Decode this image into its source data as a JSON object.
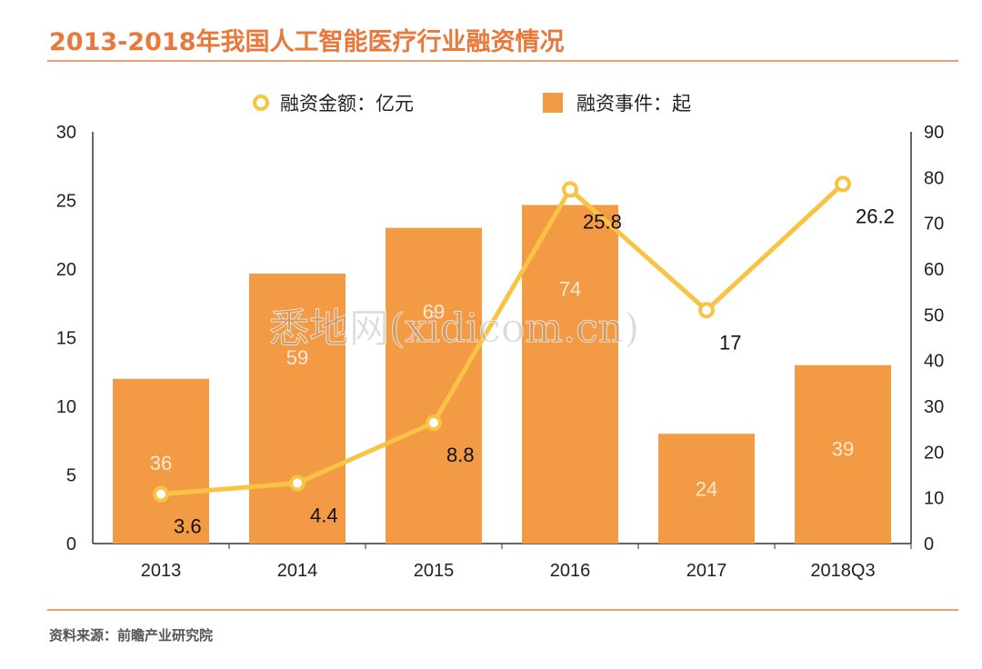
{
  "title": "2013-2018年我国人工智能医疗行业融资情况",
  "source": "资料来源：前瞻产业研究院",
  "watermark": "悉地网(xidicom.cn)",
  "colors": {
    "bar": "#F39A45",
    "line": "#F9C443",
    "title": "#E8793A",
    "rule": "#E8A070"
  },
  "chart_data": {
    "type": "bar",
    "categories": [
      "2013",
      "2014",
      "2015",
      "2016",
      "2017",
      "2018Q3"
    ],
    "series": [
      {
        "name": "融资事件：起",
        "type": "bar",
        "axis": "right",
        "values": [
          36,
          59,
          69,
          74,
          24,
          39
        ]
      },
      {
        "name": "融资金额：亿元",
        "type": "line",
        "axis": "left",
        "values": [
          3.6,
          4.4,
          8.8,
          25.8,
          17,
          26.2
        ]
      }
    ],
    "y_left": {
      "ylim": [
        0,
        30
      ],
      "ticks": [
        "0",
        "5",
        "10",
        "15",
        "20",
        "25",
        "30"
      ]
    },
    "y_right": {
      "ylim": [
        0,
        90
      ],
      "ticks": [
        "0",
        "10",
        "20",
        "30",
        "40",
        "50",
        "60",
        "70",
        "80",
        "90"
      ]
    },
    "legend_position": "top-center",
    "grid": false
  }
}
